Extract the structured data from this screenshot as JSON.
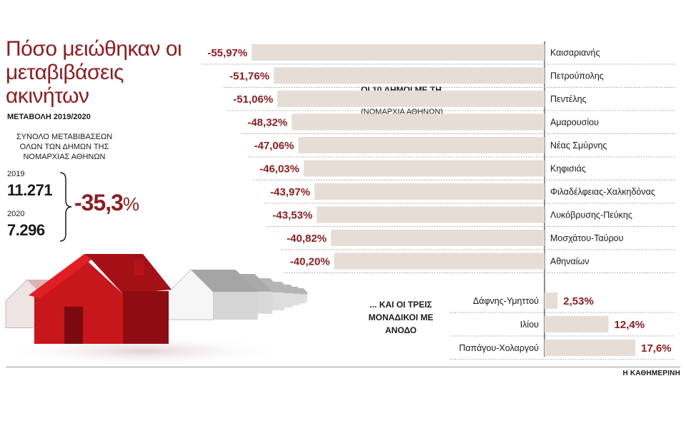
{
  "header": {
    "title": "Πόσο μειώθηκαν οι μεταβιβάσεις ακινήτων",
    "subtitle": "ΜΕΤΑΒΟΛΗ 2019/2020",
    "totals_label": "ΣΥΝΟΛΟ ΜΕΤΑΒΙΒΑΣΕΩΝ ΟΛΩΝ ΤΩΝ ΔΗΜΩΝ ΤΗΣ ΝΟΜΑΡΧΙΑΣ ΑΘΗΝΩΝ",
    "year1": "2019",
    "value1": "11.271",
    "year2": "2020",
    "value2": "7.296",
    "change": "-35,3",
    "change_unit": "%"
  },
  "legend": {
    "line1": "ΟΙ 10 ΔΗΜΟΙ ΜΕ ΤΗ ΜΕΓΑΛΥΤΕΡΗ ΠΤΩΣΗ",
    "line2": "(ΝΟΜΑΡΧΙΑ ΑΘΗΝΩΝ)"
  },
  "rising_label": "... ΚΑΙ ΟΙ ΤΡΕΙΣ ΜΟΝΑΔΙΚΟΙ ΜΕ ΑΝΟΔΟ",
  "source": "Η ΚΑΘΗΜΕΡΙΝΗ",
  "colors": {
    "accent": "#8b1e22",
    "bar": "#e6ddd7",
    "house_red": "#c8161d"
  },
  "chart_data": [
    {
      "type": "bar",
      "orientation": "horizontal",
      "direction": "negative",
      "categories": [
        "Καισαριανής",
        "Πετρούπολης",
        "Πεντέλης",
        "Αμαρουσίου",
        "Νέας Σμύρνης",
        "Κηφισιάς",
        "Φιλαδέλφειας-Χαλκηδόνας",
        "Λυκόβρυσης-Πεύκης",
        "Μοσχάτου-Ταύρου",
        "Αθηναίων"
      ],
      "values": [
        -55.97,
        -51.76,
        -51.06,
        -48.32,
        -47.06,
        -46.03,
        -43.97,
        -43.53,
        -40.82,
        -40.2
      ],
      "labels": [
        "-55,97%",
        "-51,76%",
        "-51,06%",
        "-48,32%",
        "-47,06%",
        "-46,03%",
        "-43,97%",
        "-43,53%",
        "-40,82%",
        "-40,20%"
      ]
    },
    {
      "type": "bar",
      "orientation": "horizontal",
      "direction": "positive",
      "categories": [
        "Δάφνης-Υμηττού",
        "Ιλίου",
        "Παπάγου-Χολαργού"
      ],
      "values": [
        2.53,
        12.4,
        17.6
      ],
      "labels": [
        "2,53%",
        "12,4%",
        "17,6%"
      ]
    }
  ]
}
